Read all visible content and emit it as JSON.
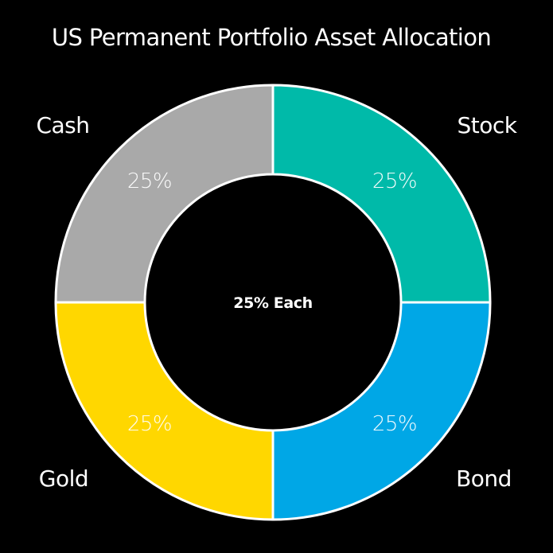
{
  "chart_data": {
    "type": "pie",
    "variant": "donut",
    "title": "US Permanent Portfolio Asset Allocation",
    "center_label": "25% Each",
    "categories": [
      "Stock",
      "Bond",
      "Gold",
      "Cash"
    ],
    "values": [
      25,
      25,
      25,
      25
    ],
    "value_labels": [
      "25%",
      "25%",
      "25%",
      "25%"
    ],
    "colors": [
      "#00BAA9",
      "#00A7E6",
      "#FFD700",
      "#A9A9A9"
    ],
    "legend": "none (labels placed outside each slice)",
    "start_angle": "12 o'clock, clockwise"
  },
  "labels": {
    "title": "US Permanent Portfolio Asset Allocation",
    "center": "25% Each",
    "stock": "Stock",
    "bond": "Bond",
    "gold": "Gold",
    "cash": "Cash",
    "stock_pct": "25%",
    "bond_pct": "25%",
    "gold_pct": "25%",
    "cash_pct": "25%"
  }
}
